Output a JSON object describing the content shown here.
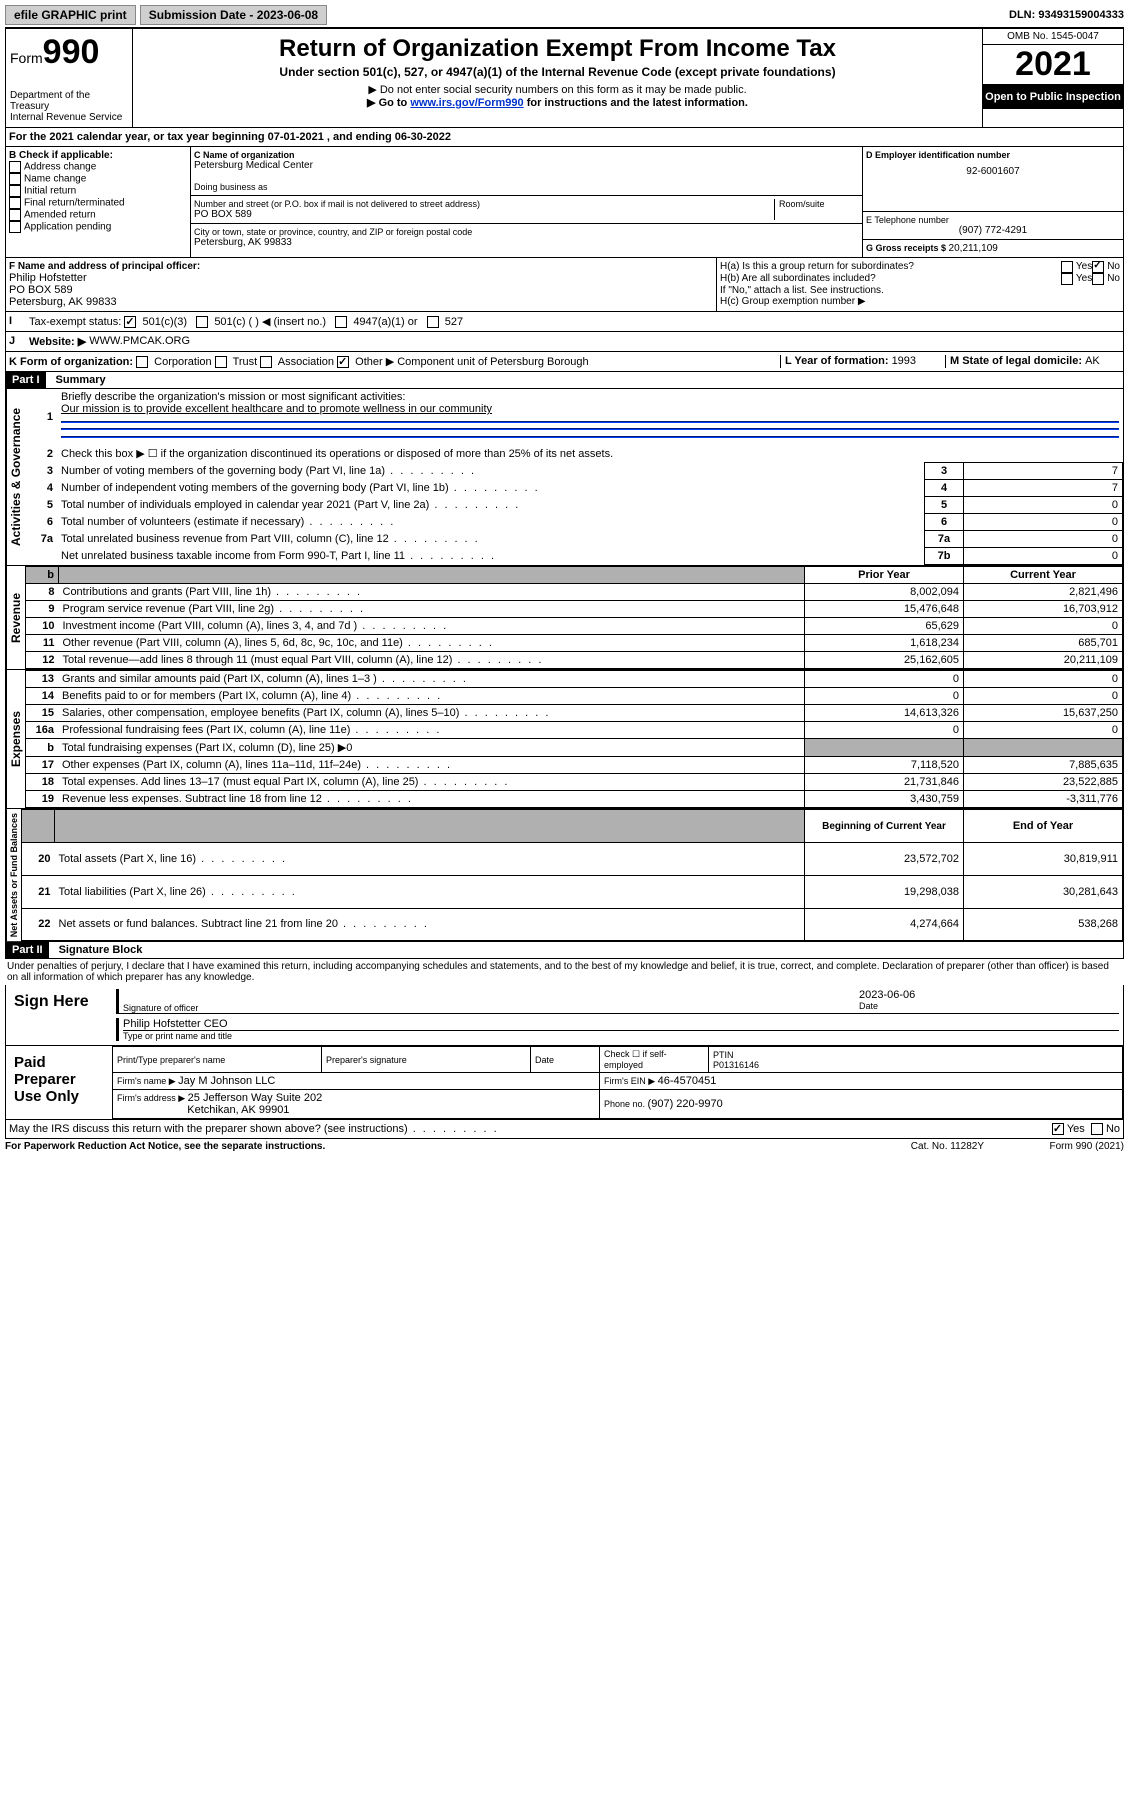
{
  "topbar": {
    "efile": "efile GRAPHIC print",
    "submission_label": "Submission Date - 2023-06-08",
    "dln": "DLN: 93493159004333"
  },
  "header": {
    "form_word": "Form",
    "form_num": "990",
    "dept": "Department of the Treasury",
    "irs": "Internal Revenue Service",
    "title": "Return of Organization Exempt From Income Tax",
    "subtitle": "Under section 501(c), 527, or 4947(a)(1) of the Internal Revenue Code (except private foundations)",
    "note1": "▶ Do not enter social security numbers on this form as it may be made public.",
    "note2_pre": "▶ Go to ",
    "note2_link": "www.irs.gov/Form990",
    "note2_post": " for instructions and the latest information.",
    "omb": "OMB No. 1545-0047",
    "year": "2021",
    "open": "Open to Public Inspection"
  },
  "line_a": "For the 2021 calendar year, or tax year beginning 07-01-2021  , and ending 06-30-2022",
  "section_b": {
    "label": "B Check if applicable:",
    "items": [
      "Address change",
      "Name change",
      "Initial return",
      "Final return/terminated",
      "Amended return",
      "Application pending"
    ]
  },
  "section_c": {
    "name_label": "C Name of organization",
    "name": "Petersburg Medical Center",
    "dba_label": "Doing business as",
    "addr_label": "Number and street (or P.O. box if mail is not delivered to street address)",
    "room_label": "Room/suite",
    "addr": "PO BOX 589",
    "city_label": "City or town, state or province, country, and ZIP or foreign postal code",
    "city": "Petersburg, AK  99833"
  },
  "section_d": {
    "ein_label": "D Employer identification number",
    "ein": "92-6001607",
    "phone_label": "E Telephone number",
    "phone": "(907) 772-4291",
    "gross_label": "G Gross receipts $ ",
    "gross": "20,211,109"
  },
  "section_f": {
    "label": "F  Name and address of principal officer:",
    "name": "Philip Hofstetter",
    "addr1": "PO BOX 589",
    "addr2": "Petersburg, AK  99833"
  },
  "section_h": {
    "ha": "H(a)  Is this a group return for subordinates?",
    "hb": "H(b)  Are all subordinates included?",
    "hb_note": "If \"No,\" attach a list. See instructions.",
    "hc": "H(c)  Group exemption number ▶"
  },
  "section_i": {
    "label": "Tax-exempt status:",
    "opts": [
      "501(c)(3)",
      "501(c) (  ) ◀ (insert no.)",
      "4947(a)(1) or",
      "527"
    ]
  },
  "section_j": {
    "label": "Website: ▶",
    "value": "WWW.PMCAK.ORG"
  },
  "section_k": {
    "label": "K Form of organization:",
    "opts": [
      "Corporation",
      "Trust",
      "Association",
      "Other ▶"
    ],
    "other_val": "Component unit of Petersburg Borough",
    "l_label": "L Year of formation: ",
    "l_val": "1993",
    "m_label": "M State of legal domicile: ",
    "m_val": "AK"
  },
  "part1": {
    "header": "Part I",
    "title": "Summary",
    "q1": "Briefly describe the organization's mission or most significant activities:",
    "q1_ans": "Our mission is to provide excellent healthcare and to promote wellness in our community",
    "q2": "Check this box ▶ ☐  if the organization discontinued its operations or disposed of more than 25% of its net assets.",
    "lines_gov": [
      {
        "n": "3",
        "t": "Number of voting members of the governing body (Part VI, line 1a)",
        "box": "3",
        "v": "7"
      },
      {
        "n": "4",
        "t": "Number of independent voting members of the governing body (Part VI, line 1b)",
        "box": "4",
        "v": "7"
      },
      {
        "n": "5",
        "t": "Total number of individuals employed in calendar year 2021 (Part V, line 2a)",
        "box": "5",
        "v": "0"
      },
      {
        "n": "6",
        "t": "Total number of volunteers (estimate if necessary)",
        "box": "6",
        "v": "0"
      },
      {
        "n": "7a",
        "t": "Total unrelated business revenue from Part VIII, column (C), line 12",
        "box": "7a",
        "v": "0"
      },
      {
        "n": "",
        "t": "Net unrelated business taxable income from Form 990-T, Part I, line 11",
        "box": "7b",
        "v": "0"
      }
    ],
    "col_headers": {
      "b": "b",
      "prior": "Prior Year",
      "current": "Current Year"
    },
    "revenue": [
      {
        "n": "8",
        "t": "Contributions and grants (Part VIII, line 1h)",
        "p": "8,002,094",
        "c": "2,821,496"
      },
      {
        "n": "9",
        "t": "Program service revenue (Part VIII, line 2g)",
        "p": "15,476,648",
        "c": "16,703,912"
      },
      {
        "n": "10",
        "t": "Investment income (Part VIII, column (A), lines 3, 4, and 7d )",
        "p": "65,629",
        "c": "0"
      },
      {
        "n": "11",
        "t": "Other revenue (Part VIII, column (A), lines 5, 6d, 8c, 9c, 10c, and 11e)",
        "p": "1,618,234",
        "c": "685,701"
      },
      {
        "n": "12",
        "t": "Total revenue—add lines 8 through 11 (must equal Part VIII, column (A), line 12)",
        "p": "25,162,605",
        "c": "20,211,109"
      }
    ],
    "expenses": [
      {
        "n": "13",
        "t": "Grants and similar amounts paid (Part IX, column (A), lines 1–3 )",
        "p": "0",
        "c": "0"
      },
      {
        "n": "14",
        "t": "Benefits paid to or for members (Part IX, column (A), line 4)",
        "p": "0",
        "c": "0"
      },
      {
        "n": "15",
        "t": "Salaries, other compensation, employee benefits (Part IX, column (A), lines 5–10)",
        "p": "14,613,326",
        "c": "15,637,250"
      },
      {
        "n": "16a",
        "t": "Professional fundraising fees (Part IX, column (A), line 11e)",
        "p": "0",
        "c": "0"
      },
      {
        "n": "b",
        "t": "Total fundraising expenses (Part IX, column (D), line 25) ▶0",
        "p": "",
        "c": "",
        "shaded": true
      },
      {
        "n": "17",
        "t": "Other expenses (Part IX, column (A), lines 11a–11d, 11f–24e)",
        "p": "7,118,520",
        "c": "7,885,635"
      },
      {
        "n": "18",
        "t": "Total expenses. Add lines 13–17 (must equal Part IX, column (A), line 25)",
        "p": "21,731,846",
        "c": "23,522,885"
      },
      {
        "n": "19",
        "t": "Revenue less expenses. Subtract line 18 from line 12",
        "p": "3,430,759",
        "c": "-3,311,776"
      }
    ],
    "na_headers": {
      "begin": "Beginning of Current Year",
      "end": "End of Year"
    },
    "netassets": [
      {
        "n": "20",
        "t": "Total assets (Part X, line 16)",
        "p": "23,572,702",
        "c": "30,819,911"
      },
      {
        "n": "21",
        "t": "Total liabilities (Part X, line 26)",
        "p": "19,298,038",
        "c": "30,281,643"
      },
      {
        "n": "22",
        "t": "Net assets or fund balances. Subtract line 21 from line 20",
        "p": "4,274,664",
        "c": "538,268"
      }
    ],
    "vert_gov": "Activities & Governance",
    "vert_rev": "Revenue",
    "vert_exp": "Expenses",
    "vert_na": "Net Assets or Fund Balances"
  },
  "part2": {
    "header": "Part II",
    "title": "Signature Block",
    "decl": "Under penalties of perjury, I declare that I have examined this return, including accompanying schedules and statements, and to the best of my knowledge and belief, it is true, correct, and complete. Declaration of preparer (other than officer) is based on all information of which preparer has any knowledge.",
    "sign_here": "Sign Here",
    "sig_officer": "Signature of officer",
    "sig_date_label": "Date",
    "sig_date": "2023-06-06",
    "sig_name": "Philip Hofstetter CEO",
    "sig_name_label": "Type or print name and title",
    "paid": "Paid Preparer Use Only",
    "prep_name_label": "Print/Type preparer's name",
    "prep_sig_label": "Preparer's signature",
    "date_label": "Date",
    "check_se": "Check ☐ if self-employed",
    "ptin_label": "PTIN",
    "ptin": "P01316146",
    "firm_name_label": "Firm's name    ▶ ",
    "firm_name": "Jay M Johnson LLC",
    "firm_ein_label": "Firm's EIN ▶ ",
    "firm_ein": "46-4570451",
    "firm_addr_label": "Firm's address ▶ ",
    "firm_addr1": "25 Jefferson Way Suite 202",
    "firm_addr2": "Ketchikan, AK  99901",
    "firm_phone_label": "Phone no. ",
    "firm_phone": "(907) 220-9970",
    "discuss": "May the IRS discuss this return with the preparer shown above? (see instructions)",
    "yes": "Yes",
    "no": "No"
  },
  "footer": {
    "left": "For Paperwork Reduction Act Notice, see the separate instructions.",
    "mid": "Cat. No. 11282Y",
    "right": "Form 990 (2021)"
  }
}
